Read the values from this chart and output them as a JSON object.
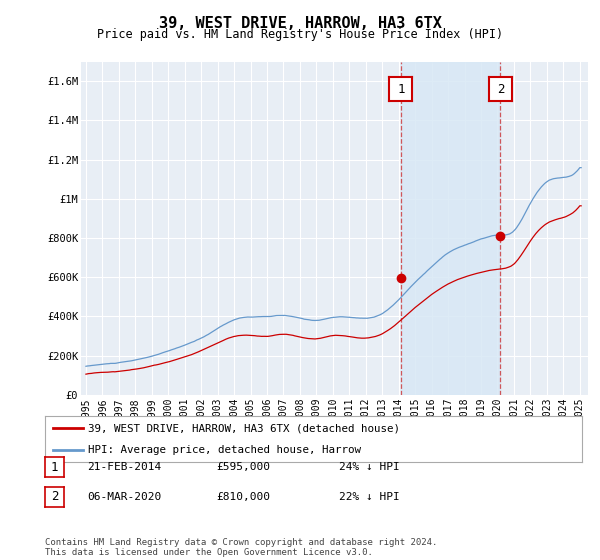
{
  "title": "39, WEST DRIVE, HARROW, HA3 6TX",
  "subtitle": "Price paid vs. HM Land Registry's House Price Index (HPI)",
  "ylim": [
    0,
    1700000
  ],
  "yticks": [
    0,
    200000,
    400000,
    600000,
    800000,
    1000000,
    1200000,
    1400000,
    1600000
  ],
  "ytick_labels": [
    "£0",
    "£200K",
    "£400K",
    "£600K",
    "£800K",
    "£1M",
    "£1.2M",
    "£1.4M",
    "£1.6M"
  ],
  "background_color": "#ffffff",
  "plot_bg_color": "#e8eef5",
  "grid_color": "#ffffff",
  "hpi_color": "#6699cc",
  "price_color": "#cc0000",
  "shade_color": "#d8e8f5",
  "marker1_x": 2014.13,
  "marker1_y": 595000,
  "marker2_x": 2020.18,
  "marker2_y": 810000,
  "vline1_x": 2014.13,
  "vline2_x": 2020.18,
  "legend_line1": "39, WEST DRIVE, HARROW, HA3 6TX (detached house)",
  "legend_line2": "HPI: Average price, detached house, Harrow",
  "table_rows": [
    {
      "num": "1",
      "date": "21-FEB-2014",
      "price": "£595,000",
      "hpi": "24% ↓ HPI"
    },
    {
      "num": "2",
      "date": "06-MAR-2020",
      "price": "£810,000",
      "hpi": "22% ↓ HPI"
    }
  ],
  "footer": "Contains HM Land Registry data © Crown copyright and database right 2024.\nThis data is licensed under the Open Government Licence v3.0.",
  "xtick_years": [
    1995,
    1996,
    1997,
    1998,
    1999,
    2000,
    2001,
    2002,
    2003,
    2004,
    2005,
    2006,
    2007,
    2008,
    2009,
    2010,
    2011,
    2012,
    2013,
    2014,
    2015,
    2016,
    2017,
    2018,
    2019,
    2020,
    2021,
    2022,
    2023,
    2024,
    2025
  ]
}
